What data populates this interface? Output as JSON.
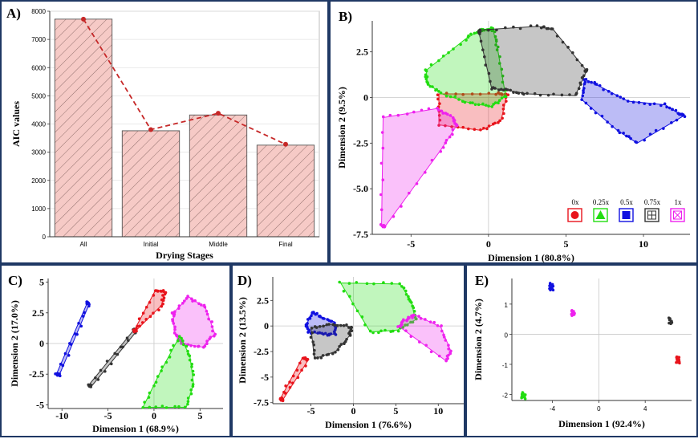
{
  "chart_data": [
    {
      "panel": "A)",
      "type": "bar",
      "title": "",
      "xlabel": "Drying Stages",
      "ylabel": "AIC values",
      "categories": [
        "All",
        "Initial",
        "Middle",
        "Final"
      ],
      "values": [
        7720,
        3760,
        4320,
        3250
      ],
      "line_values": [
        7720,
        3800,
        4380,
        3280
      ],
      "ylim": [
        0,
        8000
      ],
      "yticks": [
        0,
        1000,
        2000,
        3000,
        4000,
        5000,
        6000,
        7000,
        8000
      ],
      "ytick_labels": [
        "0",
        "1000",
        "2000",
        "3000",
        "4000",
        "5000",
        "6000",
        "7000",
        "8000"
      ],
      "bar_color": "#f4c7c3",
      "line_color": "#c62828"
    },
    {
      "panel": "B)",
      "type": "scatter",
      "xlabel": "Dimension 1 (80.8%)",
      "ylabel": "Dimension 2 (9.5%)",
      "xlim": [
        -7.5,
        13
      ],
      "ylim": [
        -7.5,
        4.2
      ],
      "xticks": [
        -5,
        0,
        5,
        10
      ],
      "xtick_labels": [
        "-5",
        "0",
        "5",
        "10"
      ],
      "yticks": [
        2.5,
        0,
        -2.5,
        -5,
        -7.5
      ],
      "ytick_labels": [
        "2.5",
        "0",
        "-2.5",
        "-5.0",
        "-7.5"
      ],
      "legend": [
        {
          "label": "0x",
          "color": "#e8141c"
        },
        {
          "label": "0.25x",
          "color": "#22dd11"
        },
        {
          "label": "0.5x",
          "color": "#1010e0"
        },
        {
          "label": "0.75x",
          "color": "#333333"
        },
        {
          "label": "1x",
          "color": "#ee22ee"
        }
      ],
      "groups": [
        {
          "name": "0x",
          "color": "#e8141c",
          "hull": [
            [
              -3.2,
              0.2
            ],
            [
              0.5,
              0.2
            ],
            [
              1.2,
              0.2
            ],
            [
              0.8,
              -1.3
            ],
            [
              -0.5,
              -1.8
            ],
            [
              -3.2,
              -1.5
            ]
          ]
        },
        {
          "name": "0.25x",
          "color": "#22dd11",
          "hull": [
            [
              -4,
              1.5
            ],
            [
              -1.5,
              3.2
            ],
            [
              -0.5,
              3.7
            ],
            [
              0.2,
              3.8
            ],
            [
              0.3,
              3.7
            ],
            [
              0.6,
              2.6
            ],
            [
              1.1,
              0.1
            ],
            [
              0.2,
              -0.5
            ],
            [
              -1.2,
              -0.3
            ],
            [
              -3,
              0.2
            ],
            [
              -4,
              0.8
            ]
          ]
        },
        {
          "name": "0.5x",
          "color": "#1010e0",
          "hull": [
            [
              6.2,
              1
            ],
            [
              7.2,
              0.6
            ],
            [
              9,
              -0.2
            ],
            [
              11.4,
              -0.4
            ],
            [
              12.3,
              -0.9
            ],
            [
              12.6,
              -1
            ],
            [
              9.6,
              -2.5
            ],
            [
              8.3,
              -1.8
            ],
            [
              6,
              -0.1
            ]
          ]
        },
        {
          "name": "0.75x",
          "color": "#333333",
          "hull": [
            [
              -0.6,
              3.7
            ],
            [
              3.2,
              3.9
            ],
            [
              4.2,
              3.7
            ],
            [
              6.3,
              1.5
            ],
            [
              6.3,
              1.4
            ],
            [
              5.6,
              0.1
            ],
            [
              2.5,
              0.2
            ],
            [
              1.2,
              0.4
            ],
            [
              0.2,
              0.5
            ],
            [
              -0.6,
              3.5
            ]
          ]
        },
        {
          "name": "1x",
          "color": "#ee22ee",
          "hull": [
            [
              -6.8,
              -1.1
            ],
            [
              -3.3,
              -0.6
            ],
            [
              -2.3,
              -1.1
            ],
            [
              -2.1,
              -1.6
            ],
            [
              -3.1,
              -2.9
            ],
            [
              -6.7,
              -7.1
            ],
            [
              -6.9,
              -7
            ]
          ]
        }
      ]
    },
    {
      "panel": "C)",
      "type": "scatter",
      "xlabel": "Dimension 1 (68.9%)",
      "ylabel": "Dimension 2 (17.0%)",
      "xlim": [
        -11.5,
        7.5
      ],
      "ylim": [
        -5.3,
        5.3
      ],
      "xticks": [
        -10,
        -5,
        0,
        5
      ],
      "xtick_labels": [
        "-10",
        "-5",
        "0",
        "5"
      ],
      "yticks": [
        5,
        2.5,
        0,
        -2.5,
        -5
      ],
      "ytick_labels": [
        "5",
        "2.5",
        "0",
        "-2.5",
        "-5"
      ],
      "groups": [
        {
          "name": "0.5x",
          "color": "#1010e0",
          "hull": [
            [
              -10.6,
              -2.5
            ],
            [
              -7.2,
              3.4
            ],
            [
              -7.1,
              3.1
            ],
            [
              -10.3,
              -2.6
            ]
          ]
        },
        {
          "name": "0.75x",
          "color": "#333333",
          "hull": [
            [
              -7.1,
              -3.4
            ],
            [
              -2.2,
              1.1
            ],
            [
              -2,
              0.9
            ],
            [
              -6.8,
              -3.5
            ]
          ]
        },
        {
          "name": "0x",
          "color": "#e8141c",
          "hull": [
            [
              -2.2,
              1
            ],
            [
              0.2,
              4.4
            ],
            [
              1.2,
              4.2
            ],
            [
              0.8,
              3.1
            ],
            [
              -1.9,
              1.1
            ]
          ]
        },
        {
          "name": "1x",
          "color": "#ee22ee",
          "hull": [
            [
              2.1,
              2.5
            ],
            [
              3.8,
              3.8
            ],
            [
              5.6,
              2.9
            ],
            [
              6.6,
              0.8
            ],
            [
              5.3,
              -0.3
            ],
            [
              3.1,
              0
            ],
            [
              2.2,
              0.9
            ],
            [
              2.1,
              2.4
            ]
          ]
        },
        {
          "name": "0.25x",
          "color": "#22dd11",
          "hull": [
            [
              -1.2,
              -5.2
            ],
            [
              3.5,
              -5.2
            ],
            [
              4.3,
              -3.3
            ],
            [
              3.9,
              -1
            ],
            [
              2.8,
              0.6
            ],
            [
              0.7,
              -2.3
            ]
          ]
        }
      ]
    },
    {
      "panel": "D)",
      "type": "scatter",
      "xlabel": "Dimension 1 (76.6%)",
      "ylabel": "Dimension 2 (13.5%)",
      "xlim": [
        -9.5,
        13
      ],
      "ylim": [
        -7.6,
        4.8
      ],
      "xticks": [
        -5,
        0,
        5,
        10
      ],
      "xtick_labels": [
        "-5",
        "0",
        "5",
        "10"
      ],
      "yticks": [
        2.5,
        0,
        -2.5,
        -5,
        -7.5
      ],
      "ytick_labels": [
        "2.5",
        "0",
        "-2.5",
        "-5",
        "-7.5"
      ],
      "groups": [
        {
          "name": "0x",
          "color": "#e8141c",
          "hull": [
            [
              -8.6,
              -7.1
            ],
            [
              -6,
              -3.1
            ],
            [
              -5.3,
              -3.3
            ],
            [
              -8.3,
              -7.2
            ]
          ]
        },
        {
          "name": "0.5x",
          "color": "#1010e0",
          "hull": [
            [
              -5.5,
              0.2
            ],
            [
              -4.8,
              1.4
            ],
            [
              -3.9,
              0.9
            ],
            [
              -2.2,
              0.4
            ],
            [
              -2.1,
              -0.8
            ],
            [
              -3.6,
              -0.8
            ],
            [
              -5.3,
              -0.6
            ]
          ]
        },
        {
          "name": "0.75x",
          "color": "#333333",
          "hull": [
            [
              -5,
              -0.2
            ],
            [
              -2.4,
              0.2
            ],
            [
              -0.2,
              -0.1
            ],
            [
              -0.5,
              -1
            ],
            [
              -2.1,
              -2.5
            ],
            [
              -4.6,
              -3.2
            ]
          ]
        },
        {
          "name": "0.25x",
          "color": "#22dd11",
          "hull": [
            [
              -1.5,
              4.2
            ],
            [
              5.5,
              4.1
            ],
            [
              6.8,
              2.5
            ],
            [
              7.3,
              0.6
            ],
            [
              5.2,
              -0.4
            ],
            [
              2,
              -0.6
            ]
          ]
        },
        {
          "name": "1x",
          "color": "#ee22ee",
          "hull": [
            [
              6.3,
              0.7
            ],
            [
              7.2,
              1.1
            ],
            [
              10.3,
              -0.1
            ],
            [
              11.5,
              -2.5
            ],
            [
              10.9,
              -3.4
            ],
            [
              5.3,
              0
            ]
          ]
        }
      ]
    },
    {
      "panel": "E)",
      "type": "scatter",
      "xlabel": "Dimension 1 (92.4%)",
      "ylabel": "Dimension 2 (4.7%)",
      "xlim": [
        -7.5,
        8
      ],
      "ylim": [
        -2.2,
        1.85
      ],
      "xticks": [
        -4,
        0,
        4
      ],
      "xtick_labels": [
        "-4",
        "0",
        "4"
      ],
      "yticks": [
        1,
        0,
        -1,
        -2
      ],
      "ytick_labels": [
        "1",
        "0",
        "-1",
        "-2"
      ],
      "groups": [
        {
          "name": "0.5x",
          "color": "#1010e0",
          "center": [
            -4.1,
            1.58
          ]
        },
        {
          "name": "1x",
          "color": "#ee22ee",
          "center": [
            -2.2,
            0.68
          ]
        },
        {
          "name": "0.75x",
          "color": "#333333",
          "center": [
            6.2,
            0.45
          ]
        },
        {
          "name": "0x",
          "color": "#e8141c",
          "center": [
            6.8,
            -0.85
          ]
        },
        {
          "name": "0.25x",
          "color": "#22dd11",
          "center": [
            -6.5,
            -2.05
          ]
        }
      ]
    }
  ]
}
